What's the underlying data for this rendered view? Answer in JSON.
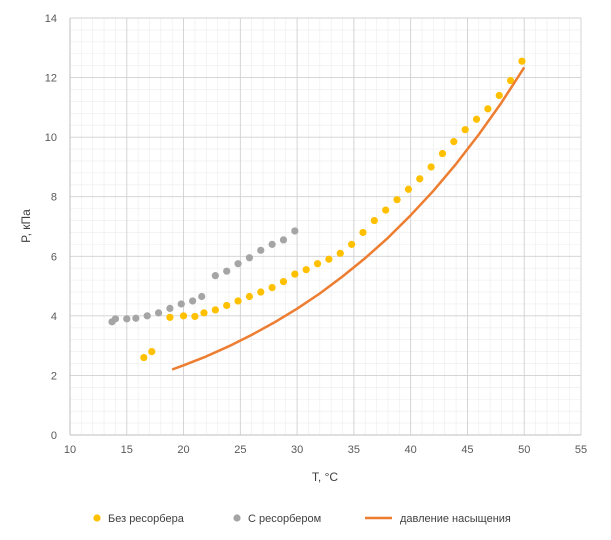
{
  "chart_data": {
    "type": "scatter",
    "xlabel": "T, °C",
    "ylabel": "P, кПа",
    "xlim": [
      10,
      55
    ],
    "ylim": [
      0,
      14
    ],
    "x_ticks": [
      10,
      15,
      20,
      25,
      30,
      35,
      40,
      45,
      50,
      55
    ],
    "y_ticks": [
      0,
      2,
      4,
      6,
      8,
      10,
      12,
      14
    ],
    "grid": true,
    "legend_position": "bottom",
    "series": [
      {
        "name": "Без ресорбера",
        "kind": "scatter",
        "color": "#FFC000",
        "points": [
          [
            16.5,
            2.6
          ],
          [
            17.2,
            2.8
          ],
          [
            18.8,
            3.95
          ],
          [
            20.0,
            4.0
          ],
          [
            21.0,
            3.98
          ],
          [
            21.8,
            4.1
          ],
          [
            22.8,
            4.2
          ],
          [
            23.8,
            4.35
          ],
          [
            24.8,
            4.5
          ],
          [
            25.8,
            4.65
          ],
          [
            26.8,
            4.8
          ],
          [
            27.8,
            4.95
          ],
          [
            28.8,
            5.15
          ],
          [
            29.8,
            5.4
          ],
          [
            30.8,
            5.55
          ],
          [
            31.8,
            5.75
          ],
          [
            32.8,
            5.9
          ],
          [
            33.8,
            6.1
          ],
          [
            34.8,
            6.4
          ],
          [
            35.8,
            6.8
          ],
          [
            36.8,
            7.2
          ],
          [
            37.8,
            7.55
          ],
          [
            38.8,
            7.9
          ],
          [
            39.8,
            8.25
          ],
          [
            40.8,
            8.6
          ],
          [
            41.8,
            9.0
          ],
          [
            42.8,
            9.45
          ],
          [
            43.8,
            9.85
          ],
          [
            44.8,
            10.25
          ],
          [
            45.8,
            10.6
          ],
          [
            46.8,
            10.95
          ],
          [
            47.8,
            11.4
          ],
          [
            48.8,
            11.9
          ],
          [
            49.8,
            12.55
          ]
        ]
      },
      {
        "name": "С ресорбером",
        "kind": "scatter",
        "color": "#A5A5A5",
        "points": [
          [
            13.7,
            3.8
          ],
          [
            14.0,
            3.9
          ],
          [
            15.0,
            3.9
          ],
          [
            15.8,
            3.92
          ],
          [
            16.8,
            4.0
          ],
          [
            17.8,
            4.1
          ],
          [
            18.8,
            4.25
          ],
          [
            19.8,
            4.4
          ],
          [
            20.8,
            4.5
          ],
          [
            21.6,
            4.65
          ],
          [
            22.8,
            5.35
          ],
          [
            23.8,
            5.5
          ],
          [
            24.8,
            5.75
          ],
          [
            25.8,
            5.95
          ],
          [
            26.8,
            6.2
          ],
          [
            27.8,
            6.4
          ],
          [
            28.8,
            6.55
          ],
          [
            29.8,
            6.85
          ]
        ]
      },
      {
        "name": "давление насыщения",
        "kind": "line",
        "color": "#ED7D31",
        "points": [
          [
            19,
            2.2
          ],
          [
            20,
            2.34
          ],
          [
            22,
            2.64
          ],
          [
            24,
            2.98
          ],
          [
            26,
            3.36
          ],
          [
            28,
            3.78
          ],
          [
            30,
            4.24
          ],
          [
            32,
            4.75
          ],
          [
            34,
            5.32
          ],
          [
            36,
            5.94
          ],
          [
            38,
            6.62
          ],
          [
            40,
            7.38
          ],
          [
            42,
            8.2
          ],
          [
            44,
            9.1
          ],
          [
            46,
            10.09
          ],
          [
            48,
            11.16
          ],
          [
            50,
            12.34
          ]
        ]
      }
    ]
  }
}
